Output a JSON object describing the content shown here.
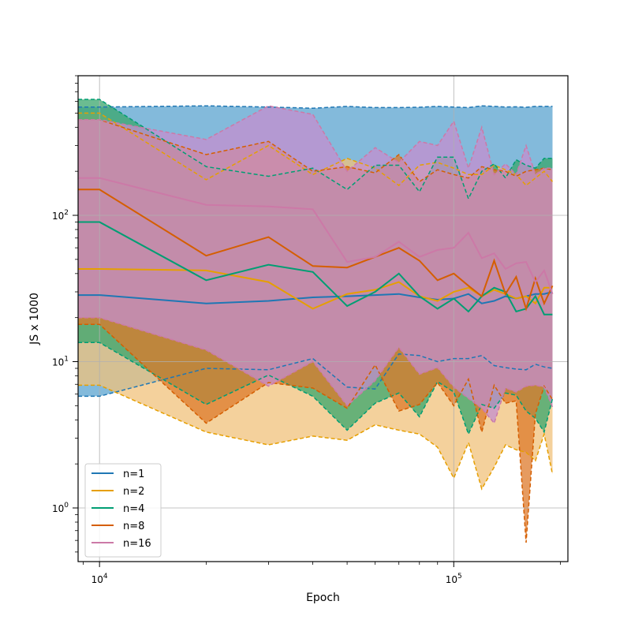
{
  "chart_data": {
    "type": "area",
    "title": "",
    "xlabel": "Epoch",
    "ylabel": "JS x 1000",
    "xscale": "log",
    "yscale": "log",
    "xlim": [
      8700,
      210000
    ],
    "ylim": [
      0.43,
      900
    ],
    "grid": true,
    "legend_position": "bottom-left",
    "x_tick_labels": [
      {
        "value": 10000,
        "base": "10",
        "exp": "4"
      },
      {
        "value": 100000,
        "base": "10",
        "exp": "5"
      }
    ],
    "y_tick_labels": [
      {
        "value": 1,
        "base": "10",
        "exp": "0"
      },
      {
        "value": 10,
        "base": "10",
        "exp": "1"
      },
      {
        "value": 100,
        "base": "10",
        "exp": "2"
      }
    ],
    "x": [
      10000,
      20000,
      30000,
      40000,
      50000,
      60000,
      70000,
      80000,
      90000,
      100000,
      110000,
      120000,
      130000,
      140000,
      150000,
      160000,
      170000,
      180000,
      190000
    ],
    "series": [
      {
        "name": "n=1",
        "color": "#1f77b4",
        "fill": "#5aa3cf",
        "x": [
          8700,
          10000,
          20000,
          30000,
          40000,
          50000,
          60000,
          70000,
          80000,
          90000,
          100000,
          110000,
          120000,
          130000,
          140000,
          150000,
          160000,
          170000,
          180000,
          190000
        ],
        "median": [
          28.5,
          28.5,
          25,
          26,
          27.5,
          28,
          28.5,
          29,
          27.5,
          26.5,
          27,
          29,
          25,
          26,
          28,
          27,
          28,
          29,
          29,
          30
        ],
        "lower": [
          5.8,
          5.8,
          9,
          8.8,
          10.5,
          6.7,
          6.5,
          11.3,
          11,
          10,
          10.5,
          10.5,
          11,
          9.4,
          9.1,
          8.9,
          8.8,
          9.6,
          9.2,
          9
        ],
        "upper": [
          550,
          550,
          560,
          550,
          540,
          555,
          545,
          545,
          548,
          555,
          550,
          545,
          560,
          555,
          550,
          552,
          548,
          555,
          555,
          555
        ]
      },
      {
        "name": "n=2",
        "color": "#e69f00",
        "fill": "#f0c27b",
        "x": [
          8700,
          10000,
          20000,
          30000,
          40000,
          50000,
          60000,
          70000,
          80000,
          90000,
          100000,
          110000,
          120000,
          130000,
          140000,
          150000,
          160000,
          170000,
          180000,
          190000
        ],
        "median": [
          43,
          43,
          42,
          35,
          23,
          29,
          31,
          35,
          28,
          26,
          30,
          32,
          28,
          31,
          29,
          27,
          28,
          25,
          32,
          32
        ],
        "lower": [
          6.9,
          6.9,
          3.3,
          2.7,
          3.1,
          2.9,
          3.7,
          3.4,
          3.2,
          2.6,
          1.6,
          2.8,
          1.35,
          1.9,
          2.7,
          2.5,
          2.4,
          2.1,
          3.2,
          1.7
        ],
        "upper": [
          500,
          500,
          175,
          300,
          190,
          245,
          210,
          160,
          220,
          230,
          210,
          190,
          190,
          220,
          205,
          190,
          160,
          180,
          200,
          170
        ]
      },
      {
        "name": "n=4",
        "color": "#009e73",
        "fill": "#3aa66c",
        "x": [
          8700,
          10000,
          20000,
          30000,
          40000,
          50000,
          60000,
          70000,
          80000,
          90000,
          100000,
          110000,
          120000,
          130000,
          140000,
          150000,
          160000,
          170000,
          180000,
          190000
        ],
        "median": [
          90,
          90,
          36,
          46,
          41,
          24,
          30,
          40,
          28,
          23,
          27,
          22,
          28,
          32,
          30,
          22,
          23,
          28,
          21,
          21
        ],
        "lower": [
          13.5,
          13.5,
          5.1,
          8.1,
          5.8,
          3.4,
          5.2,
          6.1,
          4.2,
          7.3,
          6.2,
          3.2,
          5.1,
          4.8,
          6.1,
          5.9,
          4.6,
          4.1,
          3.3,
          5.6
        ],
        "upper": [
          620,
          620,
          215,
          185,
          210,
          150,
          220,
          220,
          145,
          250,
          250,
          130,
          200,
          225,
          180,
          240,
          220,
          210,
          245,
          245
        ]
      },
      {
        "name": "n=8",
        "color": "#d55e00",
        "fill": "#de7a2b",
        "x": [
          8700,
          10000,
          20000,
          30000,
          40000,
          50000,
          60000,
          70000,
          80000,
          90000,
          100000,
          110000,
          120000,
          130000,
          140000,
          150000,
          160000,
          170000,
          180000,
          190000
        ],
        "median": [
          150,
          150,
          53,
          71,
          45,
          44,
          52,
          60,
          49,
          36,
          40,
          33,
          28,
          49,
          29,
          38,
          23,
          37,
          25,
          33
        ],
        "lower": [
          18,
          18,
          3.8,
          7.2,
          6.6,
          4.8,
          9.5,
          4.6,
          5.1,
          7.2,
          5,
          7.6,
          3.3,
          6.9,
          5.2,
          5.4,
          0.58,
          4.4,
          6.8,
          5.5
        ],
        "upper": [
          450,
          450,
          260,
          320,
          200,
          215,
          195,
          260,
          170,
          205,
          190,
          180,
          215,
          205,
          200,
          185,
          200,
          205,
          210,
          205
        ]
      },
      {
        "name": "n=16",
        "color": "#cc79a7",
        "fill": "#c48ecf",
        "x": [
          8700,
          10000,
          20000,
          30000,
          40000,
          50000,
          60000,
          70000,
          80000,
          90000,
          100000,
          110000,
          120000,
          130000,
          140000,
          150000,
          160000,
          170000,
          180000,
          190000
        ],
        "median": [
          180,
          180,
          118,
          115,
          110,
          48,
          52,
          66,
          52,
          58,
          60,
          76,
          51,
          55,
          43,
          47,
          48,
          35,
          42,
          29
        ],
        "lower": [
          20,
          20,
          12,
          6.8,
          10,
          5,
          7.4,
          12.5,
          8.2,
          9.1,
          6.7,
          5.6,
          4.8,
          3.8,
          6.6,
          6.2,
          6.8,
          6.9,
          6.7,
          4.9
        ],
        "upper": [
          450,
          450,
          330,
          560,
          490,
          200,
          290,
          230,
          320,
          300,
          440,
          210,
          400,
          190,
          225,
          190,
          300,
          190,
          210,
          210
        ]
      }
    ]
  }
}
